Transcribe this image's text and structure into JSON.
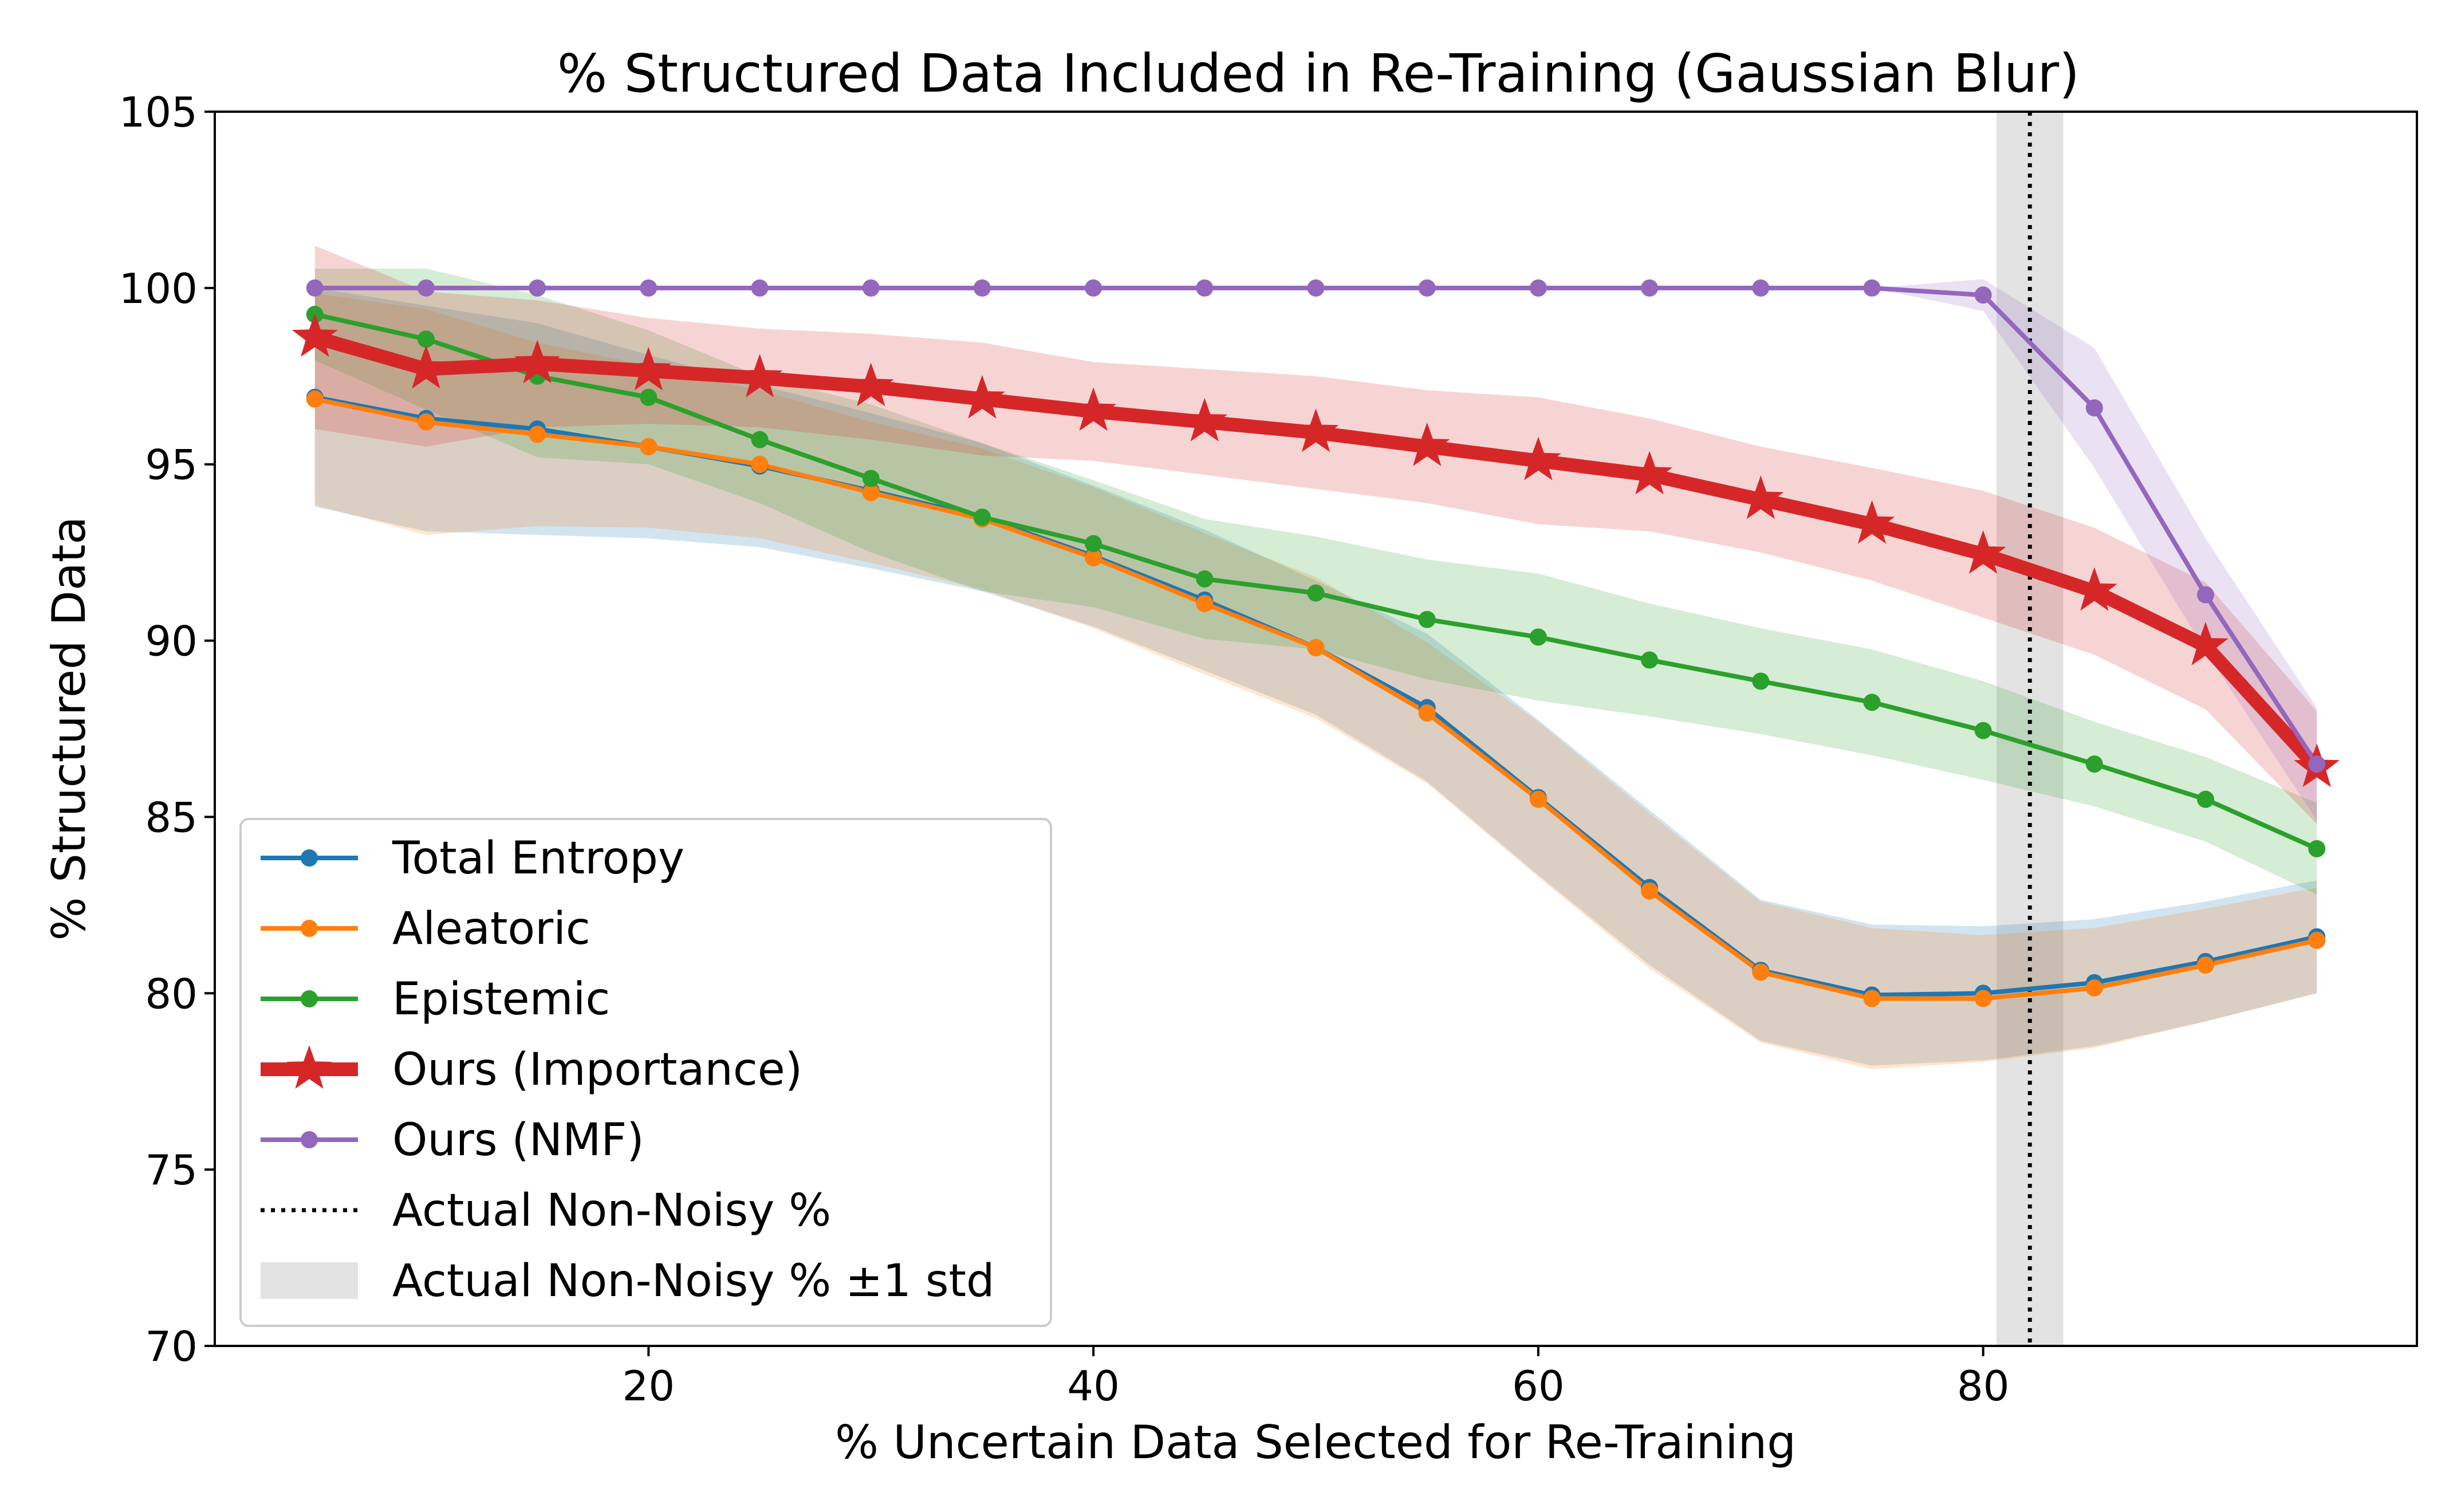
{
  "chart_data": {
    "type": "line",
    "title": "% Structured Data Included in Re-Training (Gaussian Blur)",
    "xlabel": "% Uncertain Data Selected for Re-Training",
    "ylabel": "% Structured Data",
    "xlim": [
      0.5,
      99.5
    ],
    "ylim": [
      70,
      105
    ],
    "xticks": [
      20,
      40,
      60,
      80
    ],
    "yticks": [
      70,
      75,
      80,
      85,
      90,
      95,
      100,
      105
    ],
    "grid": false,
    "legend_position": "lower-left",
    "x": [
      5,
      10,
      15,
      20,
      25,
      30,
      35,
      40,
      45,
      50,
      55,
      60,
      65,
      70,
      75,
      80,
      85,
      90,
      95
    ],
    "series": [
      {
        "name": "Total Entropy",
        "color": "#1f77b4",
        "marker": "circle",
        "values": [
          96.9,
          96.3,
          96.0,
          95.5,
          94.95,
          94.25,
          93.5,
          92.4,
          91.15,
          89.8,
          88.1,
          85.55,
          83.0,
          80.65,
          79.95,
          80.0,
          80.3,
          80.9,
          81.6
        ],
        "std": [
          3.1,
          3.2,
          3.0,
          2.6,
          2.3,
          2.2,
          2.1,
          2.0,
          2.0,
          1.9,
          2.1,
          2.2,
          2.2,
          2.0,
          2.0,
          1.9,
          1.8,
          1.7,
          1.6
        ]
      },
      {
        "name": "Aleatoric",
        "color": "#ff7f0e",
        "marker": "circle",
        "values": [
          96.85,
          96.2,
          95.85,
          95.5,
          95.0,
          94.2,
          93.45,
          92.35,
          91.05,
          89.8,
          87.95,
          85.5,
          82.9,
          80.6,
          79.85,
          79.85,
          80.15,
          80.8,
          81.5
        ],
        "std": [
          3.0,
          3.2,
          2.6,
          2.3,
          2.1,
          2.0,
          2.0,
          2.0,
          2.0,
          2.0,
          2.0,
          2.2,
          2.2,
          2.0,
          2.0,
          1.8,
          1.7,
          1.6,
          1.5
        ]
      },
      {
        "name": "Epistemic",
        "color": "#2ca02c",
        "marker": "circle",
        "values": [
          99.25,
          98.55,
          97.5,
          96.9,
          95.7,
          94.6,
          93.5,
          92.75,
          91.75,
          91.35,
          90.6,
          90.1,
          89.45,
          88.85,
          88.25,
          87.45,
          86.5,
          85.5,
          84.1
        ],
        "std": [
          1.3,
          2.0,
          2.3,
          1.9,
          1.8,
          2.1,
          2.1,
          1.8,
          1.7,
          1.6,
          1.7,
          1.8,
          1.6,
          1.5,
          1.5,
          1.4,
          1.2,
          1.2,
          1.3
        ]
      },
      {
        "name": "Ours (Importance)",
        "color": "#d62728",
        "marker": "star",
        "values": [
          98.6,
          97.7,
          97.85,
          97.65,
          97.45,
          97.2,
          96.85,
          96.5,
          96.2,
          95.9,
          95.5,
          95.1,
          94.7,
          94.0,
          93.3,
          92.45,
          91.4,
          89.85,
          86.4
        ],
        "std": [
          2.6,
          2.2,
          1.8,
          1.5,
          1.4,
          1.5,
          1.6,
          1.4,
          1.5,
          1.6,
          1.6,
          1.8,
          1.6,
          1.5,
          1.6,
          1.8,
          1.8,
          1.8,
          1.6
        ]
      },
      {
        "name": "Ours (NMF)",
        "color": "#9467bd",
        "marker": "circle",
        "values": [
          100.0,
          100.0,
          100.0,
          100.0,
          100.0,
          100.0,
          100.0,
          100.0,
          100.0,
          100.0,
          100.0,
          100.0,
          100.0,
          100.0,
          100.0,
          99.8,
          96.6,
          91.3,
          86.5
        ],
        "std": [
          0,
          0,
          0,
          0,
          0,
          0,
          0,
          0,
          0,
          0,
          0,
          0,
          0,
          0,
          0,
          0.45,
          1.7,
          1.6,
          1.6
        ]
      }
    ],
    "reference": {
      "name": "Actual Non-Noisy %",
      "x": 82.1,
      "std_name": "Actual Non-Noisy % ±1 std",
      "std": 1.5,
      "color": "#000000",
      "band_color": "#b0b0b0"
    }
  }
}
